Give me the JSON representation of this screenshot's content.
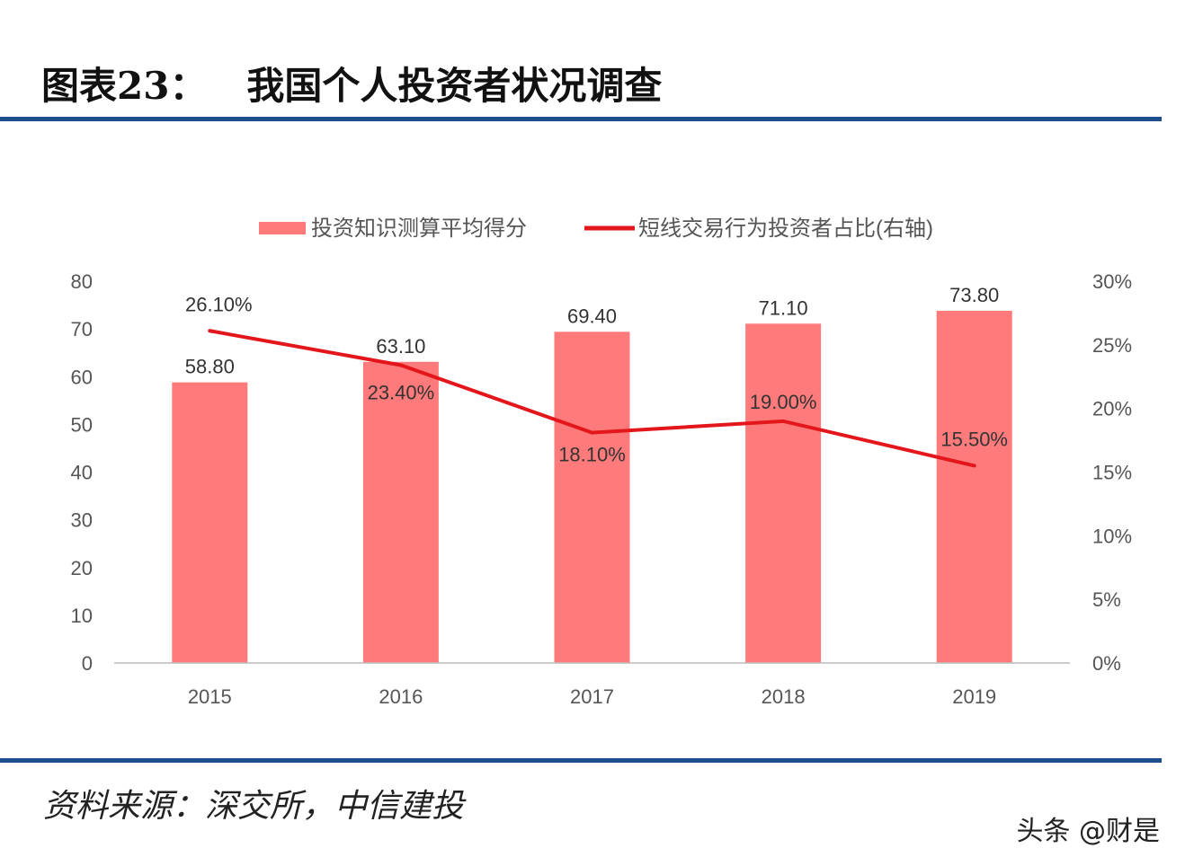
{
  "title": "图表23：   我国个人投资者状况调查",
  "source": "资料来源：深交所，中信建投",
  "watermark": "头条 @财是",
  "chart_data": {
    "type": "bar+line",
    "categories": [
      "2015",
      "2016",
      "2017",
      "2018",
      "2019"
    ],
    "series": [
      {
        "name": "投资知识测算平均得分",
        "type": "bar",
        "axis": "left",
        "values": [
          58.8,
          63.1,
          69.4,
          71.1,
          73.8
        ],
        "labels": [
          "58.80",
          "63.10",
          "69.40",
          "71.10",
          "73.80"
        ],
        "color": "#ff7b7b"
      },
      {
        "name": "短线交易行为投资者占比(右轴)",
        "type": "line",
        "axis": "right",
        "values": [
          26.1,
          23.4,
          18.1,
          19.0,
          15.5
        ],
        "labels": [
          "26.10%",
          "23.40%",
          "18.10%",
          "19.00%",
          "15.50%"
        ],
        "color": "#e3171b"
      }
    ],
    "ylim": [
      0,
      80
    ],
    "yticks": [
      "0",
      "10",
      "20",
      "30",
      "40",
      "50",
      "60",
      "70",
      "80"
    ],
    "y2lim": [
      0,
      30
    ],
    "y2ticks": [
      "0%",
      "5%",
      "10%",
      "15%",
      "20%",
      "25%",
      "30%"
    ],
    "grid": false,
    "legend": "top"
  }
}
